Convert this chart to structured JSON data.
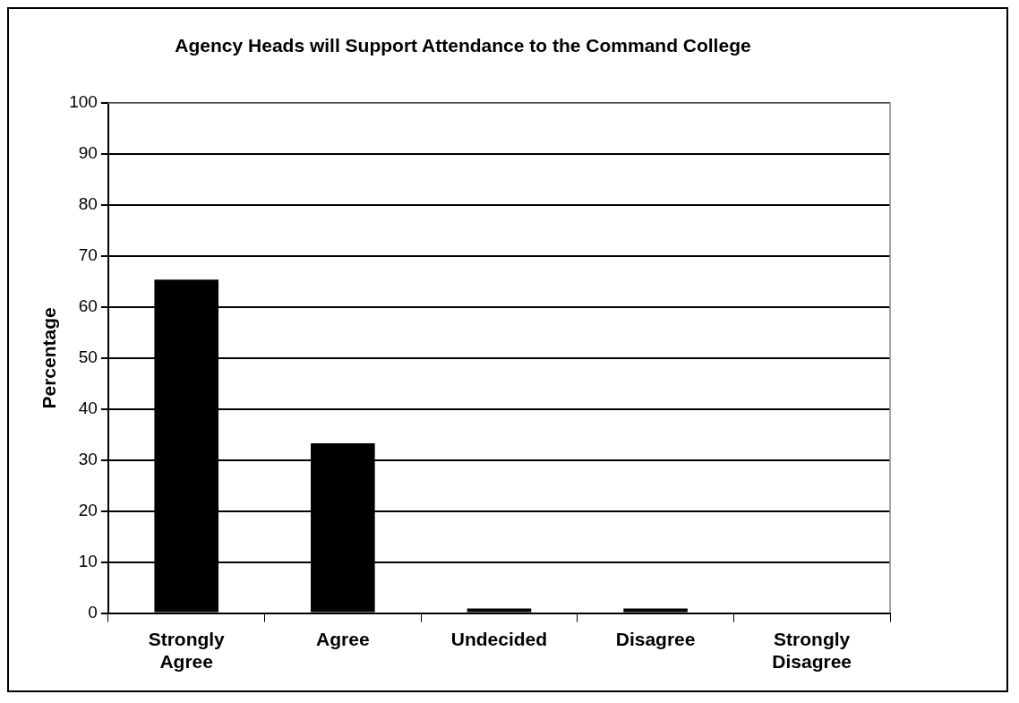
{
  "chart_data": {
    "type": "bar",
    "title": "Agency Heads will Support Attendance to the Command College",
    "ylabel": "Percentage",
    "categories": [
      "Strongly Agree",
      "Agree",
      "Undecided",
      "Disagree",
      "Strongly Disagree"
    ],
    "values": [
      65.4,
      33.3,
      0.9,
      0.9,
      0
    ],
    "color": "#000000",
    "ylim": [
      0,
      100
    ],
    "yticks": [
      0,
      10,
      20,
      30,
      40,
      50,
      60,
      70,
      80,
      90,
      100
    ],
    "grid": "y",
    "legend": false
  }
}
